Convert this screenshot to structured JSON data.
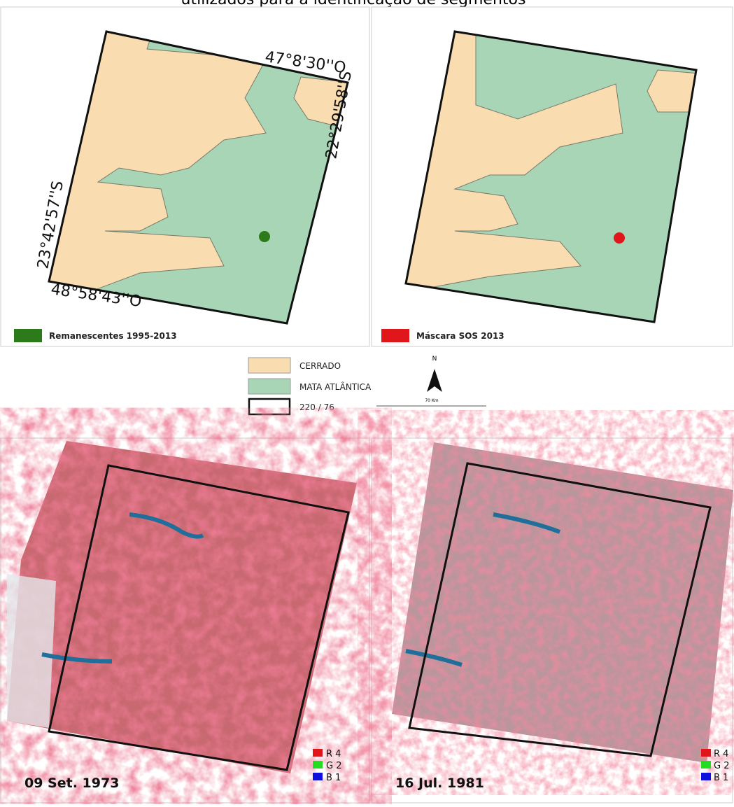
{
  "title": "utilizados para a identificação de segmentos",
  "panels": [
    {
      "coords": [
        "47°8'30''O",
        "22°29'58''S",
        "23°42'57''S",
        "48°58'43''O"
      ],
      "legend": "Remanescentes 1995-2013"
    },
    {
      "legend": "Máscara SOS 2013"
    }
  ],
  "legend": {
    "items": [
      "CERRADO",
      "MATA ATLÂNTICA",
      "220 / 76"
    ],
    "north": "N",
    "scale": "70 Km"
  },
  "images": [
    {
      "date": "09 Set. 1973",
      "bands": [
        "R 4",
        "G 2",
        "B 1"
      ]
    },
    {
      "date": "16 Jul. 1981",
      "bands": [
        "R 4",
        "G 2",
        "B 1"
      ]
    }
  ]
}
